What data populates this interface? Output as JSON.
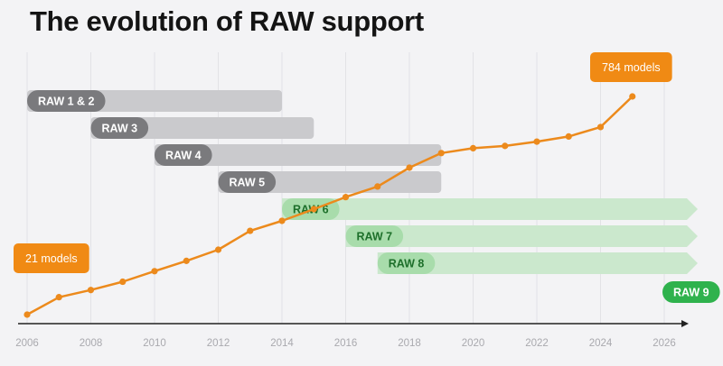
{
  "title": "The evolution of RAW support",
  "colors": {
    "line": "#ec8a1c",
    "callout": "#f08a14",
    "grey_bar": "#cacacd",
    "grey_pill": "#7a7a7d",
    "green_bar": "#cbe8cd",
    "green_pill": "#a8dcab",
    "green_pill_text": "#1d6f2a",
    "raw9_pill": "#2fb24d",
    "gridline": "#e2e2e6",
    "axis": "#222222"
  },
  "chart_data": {
    "type": "line",
    "title": "The evolution of RAW support",
    "xlabel": "",
    "ylabel": "",
    "xlim": [
      2006,
      2026.8
    ],
    "x_ticks": [
      2006,
      2008,
      2010,
      2012,
      2014,
      2016,
      2018,
      2020,
      2022,
      2024,
      2026
    ],
    "grid": "vertical",
    "series": [
      {
        "x": [
          2006,
          2007,
          2008,
          2009,
          2010,
          2011,
          2012,
          2013,
          2014,
          2015,
          2016,
          2017,
          2018,
          2019,
          2020,
          2021,
          2022,
          2023,
          2024,
          2025
        ],
        "values": [
          21,
          82,
          107,
          136,
          173,
          209,
          248,
          314,
          349,
          390,
          432,
          469,
          535,
          586,
          603,
          611,
          626,
          644,
          677,
          784
        ]
      }
    ],
    "callouts": [
      {
        "label": "21 models",
        "x": 2006,
        "value": 21
      },
      {
        "label": "784 models",
        "x": 2025,
        "value": 784
      }
    ],
    "ranges": [
      {
        "label": "RAW 1 & 2",
        "start": 2006,
        "end": 2014,
        "group": "past",
        "open_ended": false
      },
      {
        "label": "RAW 3",
        "start": 2008,
        "end": 2015,
        "group": "past",
        "open_ended": false
      },
      {
        "label": "RAW 4",
        "start": 2010,
        "end": 2019,
        "group": "past",
        "open_ended": false
      },
      {
        "label": "RAW 5",
        "start": 2012,
        "end": 2019,
        "group": "past",
        "open_ended": false
      },
      {
        "label": "RAW 6",
        "start": 2014,
        "end": null,
        "group": "current",
        "open_ended": true
      },
      {
        "label": "RAW 7",
        "start": 2016,
        "end": null,
        "group": "current",
        "open_ended": true
      },
      {
        "label": "RAW 8",
        "start": 2017,
        "end": null,
        "group": "current",
        "open_ended": true
      },
      {
        "label": "RAW 9",
        "start": 2026,
        "end": null,
        "group": "upcoming",
        "open_ended": false
      }
    ]
  }
}
